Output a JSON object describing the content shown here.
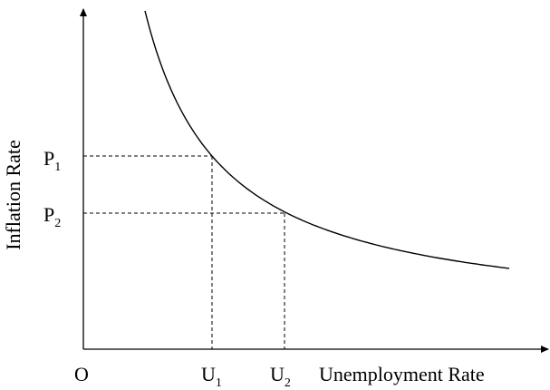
{
  "y_axis_label": "Inflation Rate",
  "x_axis_label": "Unemployment Rate",
  "origin_label": "O",
  "y_points": [
    {
      "base": "P",
      "sub": "1"
    },
    {
      "base": "P",
      "sub": "2"
    }
  ],
  "x_points": [
    {
      "base": "U",
      "sub": "1"
    },
    {
      "base": "U",
      "sub": "2"
    }
  ]
}
